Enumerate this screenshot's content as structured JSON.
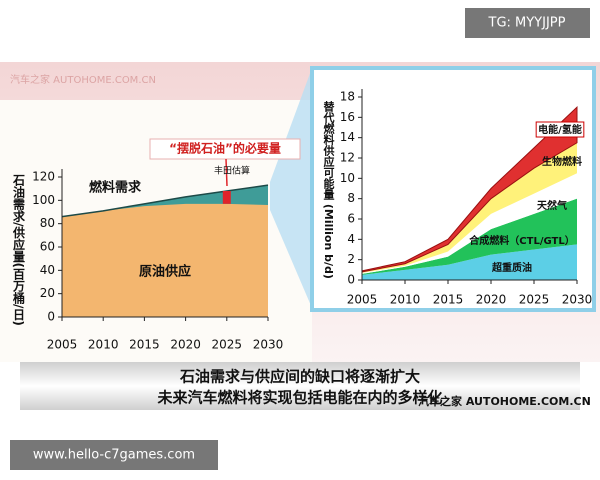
{
  "overlay_tag": "TG: MYYJJPP",
  "watermark_top": "汽车之家 AUTOHOME.COM.CN",
  "chart_data": [
    {
      "type": "area",
      "ylabel": "石油需求/供应量(百万桶/日)",
      "annotation": "丰田估算",
      "callout": "“摆脱石油”的必要量",
      "x": [
        2005,
        2010,
        2015,
        2020,
        2025,
        2030
      ],
      "xlim": [
        2005,
        2030
      ],
      "xticks": [
        2005,
        2010,
        2015,
        2020,
        2025,
        2030
      ],
      "ylim": [
        0,
        120
      ],
      "yticks": [
        0,
        20,
        40,
        60,
        80,
        100,
        120
      ],
      "gap_color": "#e0242a",
      "series": [
        {
          "name": "燃料需求",
          "color": "#3f9c98",
          "values": [
            86,
            91,
            97,
            103,
            108,
            113
          ]
        },
        {
          "name": "原油供应",
          "color": "#f3b66f",
          "values": [
            86,
            91,
            95,
            97,
            97,
            96
          ]
        }
      ]
    },
    {
      "type": "stacked_area",
      "ylabel": "替代燃料供应可能量 (Million b/d)",
      "x": [
        2005,
        2010,
        2015,
        2020,
        2025,
        2030
      ],
      "xlim": [
        2005,
        2030
      ],
      "xticks": [
        2005,
        2010,
        2015,
        2020,
        2025,
        2030
      ],
      "ylim": [
        0,
        18
      ],
      "yticks": [
        0,
        2,
        4,
        6,
        8,
        10,
        12,
        14,
        16,
        18
      ],
      "series": [
        {
          "name": "超重质油",
          "color": "#5ccfe6",
          "values": [
            0.5,
            1.0,
            1.5,
            2.5,
            3.0,
            3.5
          ]
        },
        {
          "name": "合成燃料（CTL/GTL）",
          "color": "#22c25a",
          "values": [
            0.1,
            0.3,
            0.8,
            2.5,
            3.5,
            4.5
          ]
        },
        {
          "name": "天然气",
          "color": "#ffffff",
          "values": [
            0.1,
            0.1,
            0.5,
            1.5,
            2.0,
            2.5
          ]
        },
        {
          "name": "生物燃料",
          "color": "#fff27a",
          "values": [
            0.1,
            0.2,
            0.7,
            1.5,
            2.5,
            3.0
          ]
        },
        {
          "name": "电能/氢能",
          "color": "#e03030",
          "values": [
            0.1,
            0.2,
            0.5,
            1.0,
            2.0,
            3.5
          ]
        }
      ]
    }
  ],
  "caption": {
    "lines": [
      "石油需求与供应间的缺口将逐渐扩大",
      "未来汽车燃料将实现包括电能在内的多样化"
    ]
  },
  "watermark_bottom": "汽车之家 AUTOHOME.COM.CN",
  "footer_url": "www.hello-c7games.com"
}
